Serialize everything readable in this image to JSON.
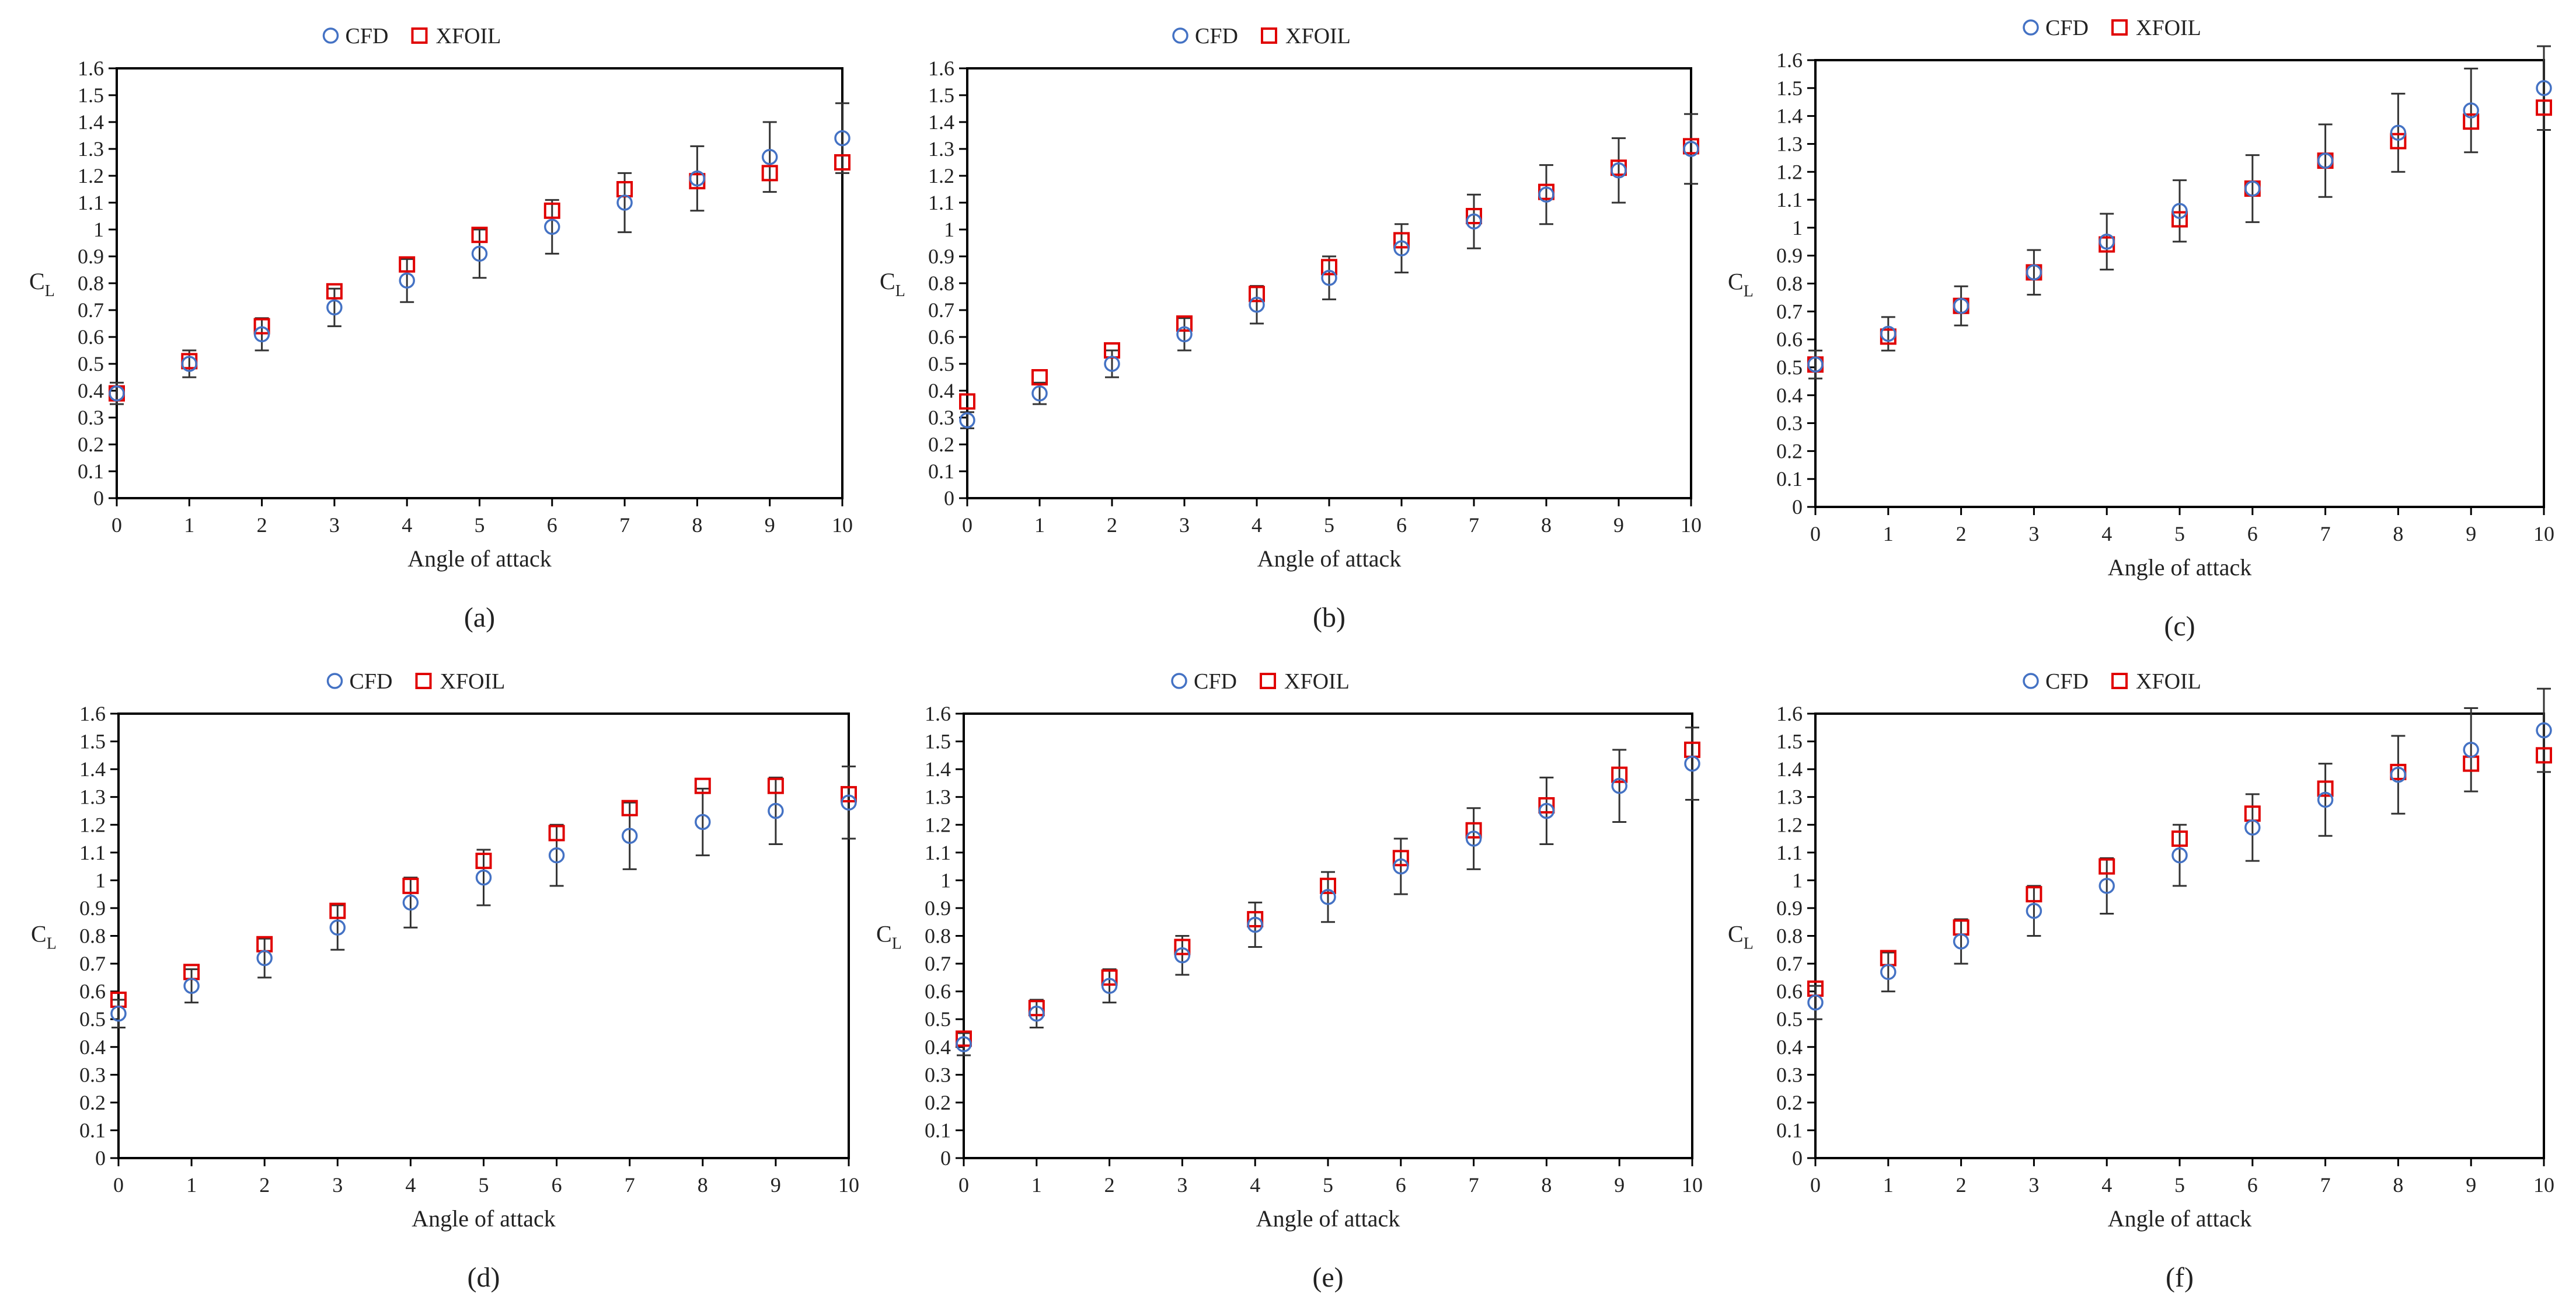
{
  "colors": {
    "cfd": "#4472C4",
    "xfoil": "#E00000",
    "axis": "#000000",
    "error_bar": "#333333"
  },
  "chart_data": [
    {
      "type": "scatter",
      "label": "(a)",
      "xlabel": "Angle of attack",
      "ylabel": "C",
      "ylabel_sub": "L",
      "xlim": [
        0,
        10
      ],
      "ylim": [
        0,
        1.6
      ],
      "x_ticks": [
        "0",
        "1",
        "2",
        "3",
        "4",
        "5",
        "6",
        "7",
        "8",
        "9",
        "10"
      ],
      "y_ticks": [
        "0",
        "0.1",
        "0.2",
        "0.3",
        "0.4",
        "0.5",
        "0.6",
        "0.7",
        "0.8",
        "0.9",
        "1",
        "1.1",
        "1.2",
        "1.3",
        "1.4",
        "1.5",
        "1.6"
      ],
      "legend": [
        "CFD",
        "XFOIL"
      ],
      "x": [
        0,
        1,
        2,
        3,
        4,
        5,
        6,
        7,
        8,
        9,
        10
      ],
      "series": [
        {
          "name": "CFD",
          "marker": "circle",
          "values": [
            0.39,
            0.5,
            0.61,
            0.71,
            0.81,
            0.91,
            1.01,
            1.1,
            1.19,
            1.27,
            1.34
          ],
          "error": [
            0.04,
            0.05,
            0.06,
            0.07,
            0.08,
            0.09,
            0.1,
            0.11,
            0.12,
            0.13,
            0.13
          ]
        },
        {
          "name": "XFOIL",
          "marker": "square",
          "values": [
            0.39,
            0.51,
            0.64,
            0.77,
            0.87,
            0.98,
            1.07,
            1.15,
            1.18,
            1.21,
            1.25
          ]
        }
      ]
    },
    {
      "type": "scatter",
      "label": "(b)",
      "xlabel": "Angle of attack",
      "ylabel": "C",
      "ylabel_sub": "L",
      "xlim": [
        0,
        10
      ],
      "ylim": [
        0,
        1.6
      ],
      "x_ticks": [
        "0",
        "1",
        "2",
        "3",
        "4",
        "5",
        "6",
        "7",
        "8",
        "9",
        "10"
      ],
      "y_ticks": [
        "0",
        "0.1",
        "0.2",
        "0.3",
        "0.4",
        "0.5",
        "0.6",
        "0.7",
        "0.8",
        "0.9",
        "1",
        "1.1",
        "1.2",
        "1.3",
        "1.4",
        "1.5",
        "1.6"
      ],
      "legend": [
        "CFD",
        "XFOIL"
      ],
      "x": [
        0,
        1,
        2,
        3,
        4,
        5,
        6,
        7,
        8,
        9,
        10
      ],
      "series": [
        {
          "name": "CFD",
          "marker": "circle",
          "values": [
            0.29,
            0.39,
            0.5,
            0.61,
            0.72,
            0.82,
            0.93,
            1.03,
            1.13,
            1.22,
            1.3
          ],
          "error": [
            0.03,
            0.04,
            0.05,
            0.06,
            0.07,
            0.08,
            0.09,
            0.1,
            0.11,
            0.12,
            0.13
          ]
        },
        {
          "name": "XFOIL",
          "marker": "square",
          "values": [
            0.36,
            0.45,
            0.55,
            0.65,
            0.76,
            0.86,
            0.96,
            1.05,
            1.14,
            1.23,
            1.31
          ]
        }
      ]
    },
    {
      "type": "scatter",
      "label": "(c)",
      "xlabel": "Angle of attack",
      "ylabel": "C",
      "ylabel_sub": "L",
      "xlim": [
        0,
        10
      ],
      "ylim": [
        0,
        1.6
      ],
      "x_ticks": [
        "0",
        "1",
        "2",
        "3",
        "4",
        "5",
        "6",
        "7",
        "8",
        "9",
        "10"
      ],
      "y_ticks": [
        "0",
        "0.1",
        "0.2",
        "0.3",
        "0.4",
        "0.5",
        "0.6",
        "0.7",
        "0.8",
        "0.9",
        "1",
        "1.1",
        "1.2",
        "1.3",
        "1.4",
        "1.5",
        "1.6"
      ],
      "legend": [
        "CFD",
        "XFOIL"
      ],
      "x": [
        0,
        1,
        2,
        3,
        4,
        5,
        6,
        7,
        8,
        9,
        10
      ],
      "series": [
        {
          "name": "CFD",
          "marker": "circle",
          "values": [
            0.51,
            0.62,
            0.72,
            0.84,
            0.95,
            1.06,
            1.14,
            1.24,
            1.34,
            1.42,
            1.5
          ],
          "error": [
            0.05,
            0.06,
            0.07,
            0.08,
            0.1,
            0.11,
            0.12,
            0.13,
            0.14,
            0.15,
            0.15
          ]
        },
        {
          "name": "XFOIL",
          "marker": "square",
          "values": [
            0.51,
            0.61,
            0.72,
            0.84,
            0.94,
            1.03,
            1.14,
            1.24,
            1.31,
            1.38,
            1.43
          ]
        }
      ]
    },
    {
      "type": "scatter",
      "label": "(d)",
      "xlabel": "Angle of attack",
      "ylabel": "C",
      "ylabel_sub": "L",
      "xlim": [
        0,
        10
      ],
      "ylim": [
        0,
        1.6
      ],
      "x_ticks": [
        "0",
        "1",
        "2",
        "3",
        "4",
        "5",
        "6",
        "7",
        "8",
        "9",
        "10"
      ],
      "y_ticks": [
        "0",
        "0.1",
        "0.2",
        "0.3",
        "0.4",
        "0.5",
        "0.6",
        "0.7",
        "0.8",
        "0.9",
        "1",
        "1.1",
        "1.2",
        "1.3",
        "1.4",
        "1.5",
        "1.6"
      ],
      "legend": [
        "CFD",
        "XFOIL"
      ],
      "x": [
        0,
        1,
        2,
        3,
        4,
        5,
        6,
        7,
        8,
        9,
        10
      ],
      "series": [
        {
          "name": "CFD",
          "marker": "circle",
          "values": [
            0.52,
            0.62,
            0.72,
            0.83,
            0.92,
            1.01,
            1.09,
            1.16,
            1.21,
            1.25,
            1.28
          ],
          "error": [
            0.05,
            0.06,
            0.07,
            0.08,
            0.09,
            0.1,
            0.11,
            0.12,
            0.12,
            0.12,
            0.13
          ]
        },
        {
          "name": "XFOIL",
          "marker": "square",
          "values": [
            0.57,
            0.67,
            0.77,
            0.89,
            0.98,
            1.07,
            1.17,
            1.26,
            1.34,
            1.34,
            1.31
          ]
        }
      ]
    },
    {
      "type": "scatter",
      "label": "(e)",
      "xlabel": "Angle of attack",
      "ylabel": "C",
      "ylabel_sub": "L",
      "xlim": [
        0,
        10
      ],
      "ylim": [
        0,
        1.6
      ],
      "x_ticks": [
        "0",
        "1",
        "2",
        "3",
        "4",
        "5",
        "6",
        "7",
        "8",
        "9",
        "10"
      ],
      "y_ticks": [
        "0",
        "0.1",
        "0.2",
        "0.3",
        "0.4",
        "0.5",
        "0.6",
        "0.7",
        "0.8",
        "0.9",
        "1",
        "1.1",
        "1.2",
        "1.3",
        "1.4",
        "1.5",
        "1.6"
      ],
      "legend": [
        "CFD",
        "XFOIL"
      ],
      "x": [
        0,
        1,
        2,
        3,
        4,
        5,
        6,
        7,
        8,
        9,
        10
      ],
      "series": [
        {
          "name": "CFD",
          "marker": "circle",
          "values": [
            0.41,
            0.52,
            0.62,
            0.73,
            0.84,
            0.94,
            1.05,
            1.15,
            1.25,
            1.34,
            1.42
          ],
          "error": [
            0.04,
            0.05,
            0.06,
            0.07,
            0.08,
            0.09,
            0.1,
            0.11,
            0.12,
            0.13,
            0.13
          ]
        },
        {
          "name": "XFOIL",
          "marker": "square",
          "values": [
            0.43,
            0.54,
            0.65,
            0.76,
            0.86,
            0.98,
            1.08,
            1.18,
            1.27,
            1.38,
            1.47
          ]
        }
      ]
    },
    {
      "type": "scatter",
      "label": "(f)",
      "xlabel": "Angle of attack",
      "ylabel": "C",
      "ylabel_sub": "L",
      "xlim": [
        0,
        10
      ],
      "ylim": [
        0,
        1.6
      ],
      "x_ticks": [
        "0",
        "1",
        "2",
        "3",
        "4",
        "5",
        "6",
        "7",
        "8",
        "9",
        "10"
      ],
      "y_ticks": [
        "0",
        "0.1",
        "0.2",
        "0.3",
        "0.4",
        "0.5",
        "0.6",
        "0.7",
        "0.8",
        "0.9",
        "1",
        "1.1",
        "1.2",
        "1.3",
        "1.4",
        "1.5",
        "1.6"
      ],
      "legend": [
        "CFD",
        "XFOIL"
      ],
      "x": [
        0,
        1,
        2,
        3,
        4,
        5,
        6,
        7,
        8,
        9,
        10
      ],
      "series": [
        {
          "name": "CFD",
          "marker": "circle",
          "values": [
            0.56,
            0.67,
            0.78,
            0.89,
            0.98,
            1.09,
            1.19,
            1.29,
            1.38,
            1.47,
            1.54
          ],
          "error": [
            0.06,
            0.07,
            0.08,
            0.09,
            0.1,
            0.11,
            0.12,
            0.13,
            0.14,
            0.15,
            0.15
          ]
        },
        {
          "name": "XFOIL",
          "marker": "square",
          "values": [
            0.61,
            0.72,
            0.83,
            0.95,
            1.05,
            1.15,
            1.24,
            1.33,
            1.39,
            1.42,
            1.45
          ]
        }
      ]
    }
  ]
}
